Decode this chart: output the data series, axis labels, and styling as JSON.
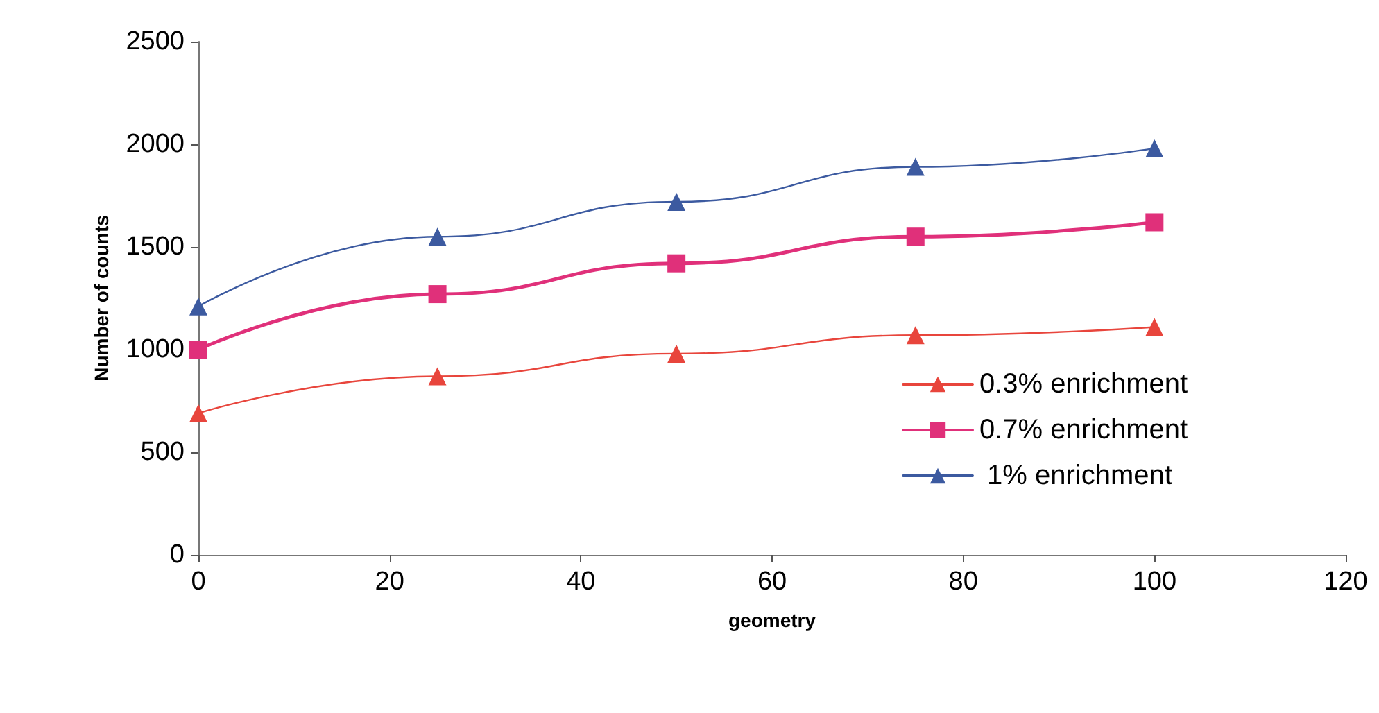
{
  "chart_data": {
    "type": "line",
    "xlabel": "geometry",
    "ylabel": "Number of counts",
    "x": [
      0,
      25,
      50,
      75,
      100
    ],
    "series": [
      {
        "name": "0.3% enrichment",
        "color": "#e8453c",
        "marker": "triangle",
        "values": [
          690,
          870,
          980,
          1070,
          1110
        ]
      },
      {
        "name": "0.7% enrichment",
        "color": "#e0307a",
        "marker": "square",
        "values": [
          1000,
          1270,
          1420,
          1550,
          1620
        ]
      },
      {
        "name": " 1% enrichment",
        "color": "#3c5aa0",
        "marker": "triangle",
        "values": [
          1210,
          1550,
          1720,
          1890,
          1980
        ]
      }
    ],
    "xlim": [
      0,
      120
    ],
    "xticks": [
      0,
      20,
      40,
      60,
      80,
      100,
      120
    ],
    "ylim": [
      0,
      2500
    ],
    "yticks": [
      0,
      500,
      1000,
      1500,
      2000,
      2500
    ],
    "grid": false,
    "legend": "right"
  }
}
